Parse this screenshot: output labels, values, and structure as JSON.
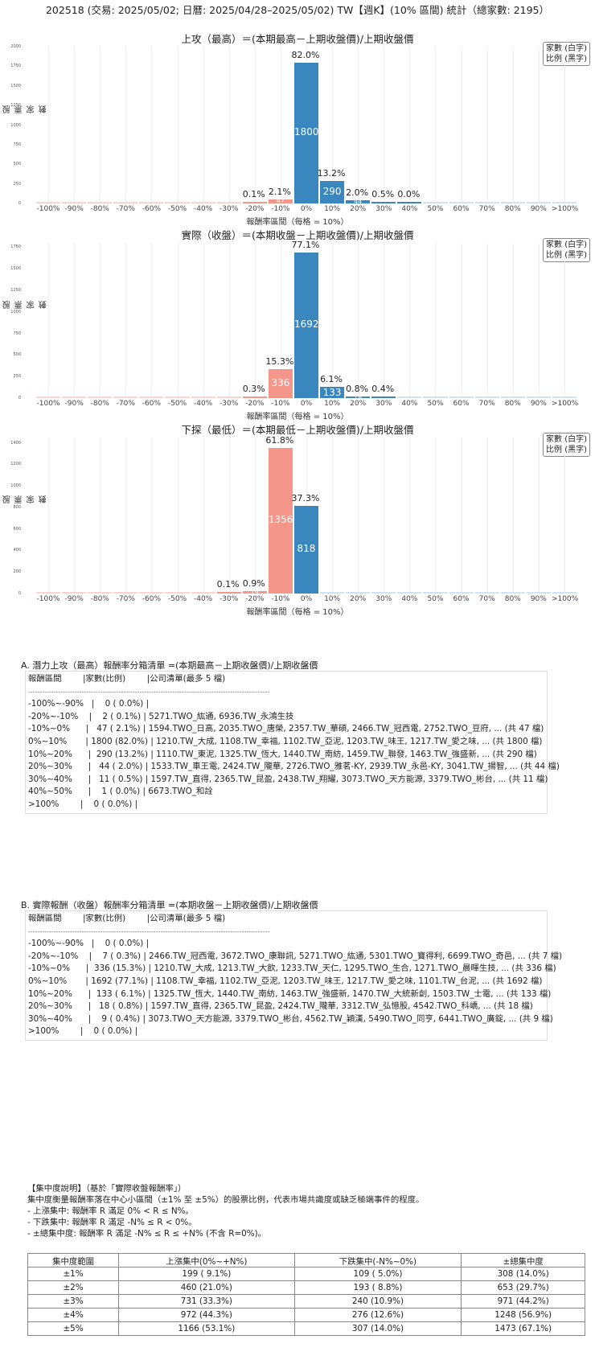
{
  "main_title": "202518 (交易: 2025/05/02; 日曆: 2025/04/28–2025/05/02) TW【週K】(10% 區間) 統計（總家數: 2195）",
  "legend": {
    "line1": "家數 (白字)",
    "line2": "比例 (黑字)"
  },
  "colors": {
    "negative": "#f4978a",
    "positive": "#3a86be",
    "neg_faint": "#fbd3cf",
    "pos_faint": "#cfe3f1",
    "grid": "#f0f0f0"
  },
  "chart_data": [
    {
      "type": "bar",
      "title": "上攻（最高）＝(本期最高－上期收盤價)/上期收盤價",
      "xlabel": "報酬率區間（每格 = 10%）",
      "ylabel": "股票家數",
      "categories": [
        "-100%",
        "-90%",
        "-80%",
        "-70%",
        "-60%",
        "-50%",
        "-40%",
        "-30%",
        "-20%",
        "-10%",
        "0%",
        "10%",
        "20%",
        "30%",
        "40%",
        "50%",
        "60%",
        "70%",
        "80%",
        "90%",
        ">100%"
      ],
      "values": [
        0,
        0,
        0,
        0,
        0,
        0,
        0,
        0,
        2,
        47,
        1800,
        290,
        44,
        11,
        1,
        0,
        0,
        0,
        0,
        0,
        0
      ],
      "pct_labels": [
        "",
        "",
        "",
        "",
        "",
        "",
        "",
        "",
        "0.1%",
        "2.1%",
        "82.0%",
        "13.2%",
        "2.0%",
        "0.5%",
        "0.0%",
        "",
        "",
        "",
        "",
        "",
        ""
      ],
      "count_labels": [
        "",
        "",
        "",
        "",
        "",
        "",
        "",
        "",
        "",
        "47",
        "1800",
        "290",
        "44",
        "",
        "",
        "",
        "",
        "",
        "",
        "",
        ""
      ],
      "yticks": [
        "0",
        "250",
        "500",
        "750",
        "1000",
        "1250",
        "1500",
        "1750",
        "2000"
      ],
      "ylim": [
        0,
        2000
      ],
      "legend_position": "upper right",
      "grid": true
    },
    {
      "type": "bar",
      "title": "實際（收盤）＝(本期收盤－上期收盤價)/上期收盤價",
      "xlabel": "報酬率區間（每格 = 10%）",
      "ylabel": "股票家數",
      "categories": [
        "-100%",
        "-90%",
        "-80%",
        "-70%",
        "-60%",
        "-50%",
        "-40%",
        "-30%",
        "-20%",
        "-10%",
        "0%",
        "10%",
        "20%",
        "30%",
        "40%",
        "50%",
        "60%",
        "70%",
        "80%",
        "90%",
        ">100%"
      ],
      "values": [
        0,
        0,
        0,
        0,
        0,
        0,
        0,
        0,
        7,
        336,
        1692,
        133,
        18,
        9,
        0,
        0,
        0,
        0,
        0,
        0,
        0
      ],
      "pct_labels": [
        "",
        "",
        "",
        "",
        "",
        "",
        "",
        "",
        "0.3%",
        "15.3%",
        "77.1%",
        "6.1%",
        "0.8%",
        "0.4%",
        "",
        "",
        "",
        "",
        "",
        "",
        ""
      ],
      "count_labels": [
        "",
        "",
        "",
        "",
        "",
        "",
        "",
        "",
        "",
        "336",
        "1692",
        "133",
        "18",
        "",
        "",
        "",
        "",
        "",
        "",
        "",
        ""
      ],
      "yticks": [
        "0",
        "250",
        "500",
        "750",
        "1000",
        "1250",
        "1500",
        "1750"
      ],
      "ylim": [
        0,
        1800
      ],
      "legend_position": "upper right",
      "grid": true
    },
    {
      "type": "bar",
      "title": "下探（最低）＝(本期最低－上期收盤價)/上期收盤價",
      "xlabel": "報酬率區間（每格 = 10%）",
      "ylabel": "股票家數",
      "categories": [
        "-100%",
        "-90%",
        "-80%",
        "-70%",
        "-60%",
        "-50%",
        "-40%",
        "-30%",
        "-20%",
        "-10%",
        "0%",
        "10%",
        "20%",
        "30%",
        "40%",
        "50%",
        "60%",
        "70%",
        "80%",
        "90%",
        ">100%"
      ],
      "values": [
        0,
        0,
        0,
        0,
        0,
        0,
        0,
        2,
        19,
        1356,
        818,
        0,
        0,
        0,
        0,
        0,
        0,
        0,
        0,
        0,
        0
      ],
      "pct_labels": [
        "",
        "",
        "",
        "",
        "",
        "",
        "",
        "0.1%",
        "0.9%",
        "61.8%",
        "37.3%",
        "",
        "",
        "",
        "",
        "",
        "",
        "",
        "",
        "",
        ""
      ],
      "count_labels": [
        "",
        "",
        "",
        "",
        "",
        "",
        "",
        "",
        "19",
        "1356",
        "818",
        "",
        "",
        "",
        "",
        "",
        "",
        "",
        "",
        "",
        ""
      ],
      "yticks": [
        "0",
        "200",
        "400",
        "600",
        "800",
        "1000",
        "1200",
        "1400"
      ],
      "ylim": [
        0,
        1450
      ],
      "legend_position": "upper right",
      "grid": true
    }
  ],
  "section_a": {
    "title": "A. 潛力上攻（最高）報酬率分箱清單 =(本期最高－上期收盤價)/上期收盤價",
    "lines": [
      "報酬區間        |家數(比例)        |公司清單(最多 5 檔)",
      "--------------------------------------------------------------------------------------------------------",
      "-100%~-90%   |    0 ( 0.0%) |",
      "-20%~-10%    |    2 ( 0.1%) | 5271.TWO_紘通, 6936.TW_永鴻生技",
      "-10%~0%      |   47 ( 2.1%) | 1594.TWO_日高, 2035.TWO_唐榮, 2357.TW_華碩, 2466.TW_冠西電, 2752.TWO_豆府, ... (共 47 檔)",
      "0%~10%       | 1800 (82.0%) | 1210.TW_大成, 1108.TW_幸福, 1102.TW_亞泥, 1203.TW_味王, 1217.TW_愛之味, ... (共 1800 檔)",
      "10%~20%      |  290 (13.2%) | 1110.TW_東泥, 1325.TW_恆大, 1440.TW_南紡, 1459.TW_聯發, 1463.TW_強盛新, ... (共 290 檔)",
      "20%~30%      |   44 ( 2.0%) | 1533.TW_車王電, 2424.TW_隴華, 2726.TWO_雅茗-KY, 2939.TW_永邑-KY, 3041.TW_揚智, ... (共 44 檔)",
      "30%~40%      |   11 ( 0.5%) | 1597.TW_直得, 2365.TW_昆盈, 2438.TW_翔耀, 3073.TWO_天方能源, 3379.TWO_彬台, ... (共 11 檔)",
      "40%~50%      |    1 ( 0.0%) | 6673.TWO_和詮",
      ">100%        |    0 ( 0.0%) |"
    ]
  },
  "section_b": {
    "title": "B. 實際報酬（收盤）報酬率分箱清單 =(本期收盤－上期收盤價)/上期收盤價",
    "lines": [
      "報酬區間        |家數(比例)        |公司清單(最多 5 檔)",
      "--------------------------------------------------------------------------------------------------------",
      "-100%~-90%   |    0 ( 0.0%) |",
      "-20%~-10%    |    7 ( 0.3%) | 2466.TW_冠西電, 3672.TWO_康聯訊, 5271.TWO_紘通, 5301.TWO_寶得利, 6699.TWO_奇邑, ... (共 7 檔)",
      "-10%~0%      |  336 (15.3%) | 1210.TW_大成, 1213.TW_大飲, 1233.TW_天仁, 1295.TWO_生合, 1271.TWO_晨暉生技, ... (共 336 檔)",
      "0%~10%       | 1692 (77.1%) | 1108.TW_幸福, 1102.TW_亞泥, 1203.TW_味王, 1217.TW_愛之味, 1101.TW_台泥, ... (共 1692 檔)",
      "10%~20%      |  133 ( 6.1%) | 1325.TW_恆大, 1440.TW_南紡, 1463.TW_強盛新, 1470.TW_大統新創, 1503.TW_士電, ... (共 133 檔)",
      "20%~30%      |   18 ( 0.8%) | 1597.TW_直得, 2365.TW_昆盈, 2424.TW_隴華, 3312.TW_弘憶股, 4542.TWO_科嶠, ... (共 18 檔)",
      "30%~40%      |    9 ( 0.4%) | 3073.TWO_天方能源, 3379.TWO_彬台, 4562.TW_穎漢, 5490.TWO_同亨, 6441.TWO_廣錠, ... (共 9 檔)",
      ">100%        |    0 ( 0.0%) |"
    ]
  },
  "concentration": {
    "heading": "【集中度說明】（基於「實際收盤報酬率」）",
    "desc": "集中度衡量報酬率落在中心小區間（±1% 至 ±5%）的股票比例，代表市場共識度或缺乏極端事件的程度。",
    "rule_up": " - 上漲集中: 報酬率 R 滿足 0% < R ≤ N%。",
    "rule_down": " - 下跌集中: 報酬率 R 滿足 -N% ≤ R < 0%。",
    "rule_total": " - ±總集中度: 報酬率 R 滿足 -N% ≤ R ≤ +N% (不含 R=0%)。",
    "table": {
      "headers": [
        "集中度範圍",
        "上漲集中(0%~+N%)",
        "下跌集中(-N%~0%)",
        "±總集中度"
      ],
      "rows": [
        [
          "±1%",
          "199 ( 9.1%)",
          "109 ( 5.0%)",
          "308 (14.0%)"
        ],
        [
          "±2%",
          "460 (21.0%)",
          "193 ( 8.8%)",
          "653 (29.7%)"
        ],
        [
          "±3%",
          "731 (33.3%)",
          "240 (10.9%)",
          "971 (44.2%)"
        ],
        [
          "±4%",
          "972 (44.3%)",
          "276 (12.6%)",
          "1248 (56.9%)"
        ],
        [
          "±5%",
          "1166 (53.1%)",
          "307 (14.0%)",
          "1473 (67.1%)"
        ]
      ]
    }
  }
}
